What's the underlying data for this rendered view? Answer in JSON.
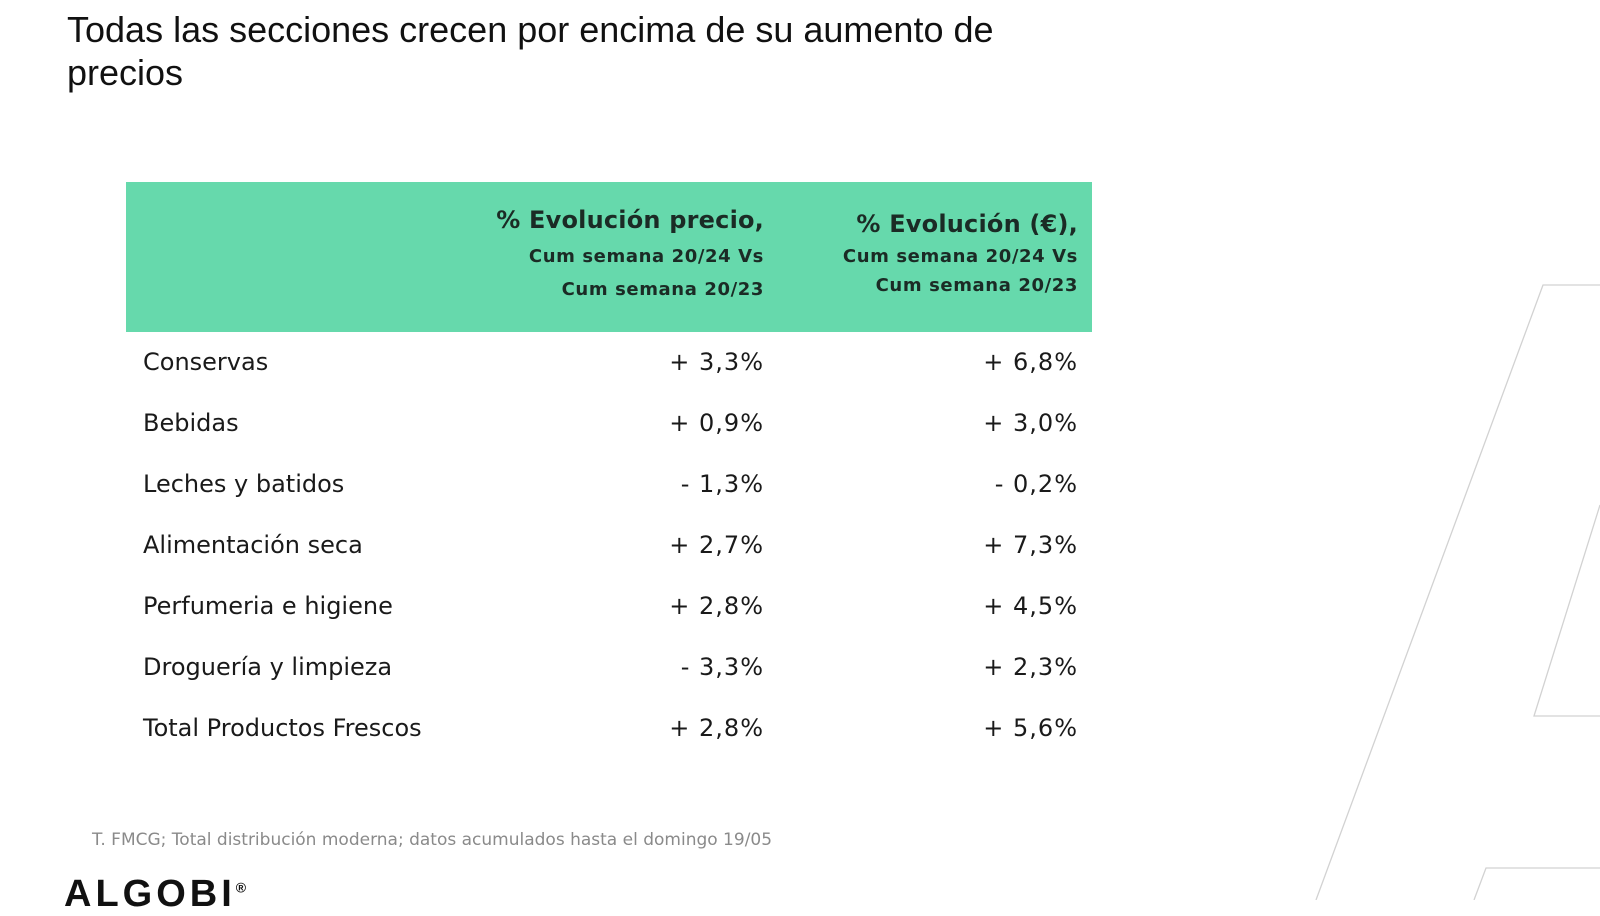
{
  "slide": {
    "title": "Todas las secciones crecen por encima de su aumento de precios",
    "table": {
      "header_color": "#66d9ac",
      "columns": [
        {
          "title": "% Evolución precio,",
          "sub1": "Cum semana 20/24 Vs",
          "sub2": "Cum semana 20/23"
        },
        {
          "title": "% Evolución (€),",
          "sub1": "Cum semana 20/24 Vs",
          "sub2": "Cum semana 20/23"
        }
      ],
      "rows": [
        {
          "label": "Conservas",
          "price": "+ 3,3%",
          "value": "+ 6,8%"
        },
        {
          "label": "Bebidas",
          "price": "+ 0,9%",
          "value": "+ 3,0%"
        },
        {
          "label": "Leches y batidos",
          "price": "- 1,3%",
          "value": "- 0,2%"
        },
        {
          "label": "Alimentación seca",
          "price": "+ 2,7%",
          "value": "+ 7,3%"
        },
        {
          "label": "Perfumeria e higiene",
          "price": "+ 2,8%",
          "value": "+ 4,5%"
        },
        {
          "label": "Droguería y limpieza",
          "price": "- 3,3%",
          "value": "+ 2,3%"
        },
        {
          "label": "Total Productos Frescos",
          "price": "+ 2,8%",
          "value": "+ 5,6%"
        }
      ]
    },
    "footnote": "T. FMCG; Total distribución moderna; datos acumulados hasta el domingo 19/05",
    "logo": {
      "text": "ALGOBI",
      "mark": "®"
    }
  }
}
